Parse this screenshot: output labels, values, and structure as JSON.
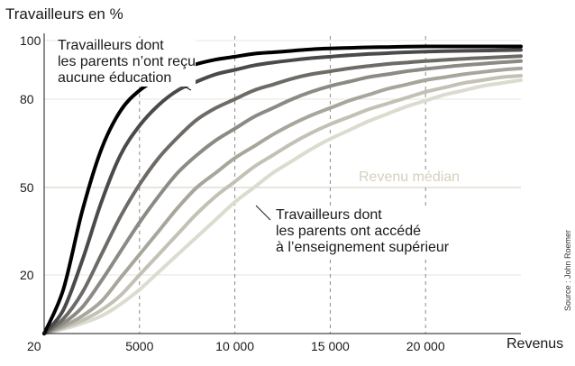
{
  "chart_data": {
    "type": "line",
    "ylabel": "Travailleurs en %",
    "xlabel": "Revenus",
    "xlim": [
      0,
      25000
    ],
    "ylim": [
      0,
      100
    ],
    "x_ticks": [
      5000,
      10000,
      15000,
      20000
    ],
    "x_tick_labels": [
      "5000",
      "10 000",
      "15 000",
      "20 000"
    ],
    "y_ticks": [
      20,
      50,
      80,
      100
    ],
    "y_tick_labels": [
      "20",
      "50",
      "80",
      "100"
    ],
    "x_origin_label": "20",
    "median": {
      "y": 50,
      "label": "Revenu médian"
    },
    "annotations": {
      "top": "Travailleurs dont\nles parents n’ont reçu\naucune éducation",
      "bottom": "Travailleurs dont\nles parents ont accédé\nà l’enseignement supérieur"
    },
    "source": "Source : John Roemer",
    "x": [
      0,
      1000,
      2000,
      3000,
      4000,
      5000,
      6000,
      7000,
      8000,
      9000,
      10000,
      11000,
      12000,
      13000,
      14000,
      15000,
      16000,
      17000,
      18000,
      19000,
      20000,
      21000,
      22000,
      23000,
      24000,
      25000
    ],
    "series": [
      {
        "color": "#000000",
        "values": [
          0,
          15,
          42,
          63,
          76,
          83,
          87,
          90,
          92,
          93.5,
          94.5,
          95.5,
          96,
          96.5,
          97,
          97.3,
          97.5,
          97.7,
          97.8,
          97.9,
          98,
          98,
          98,
          98,
          98,
          98
        ]
      },
      {
        "color": "#4a4a4a",
        "values": [
          0,
          8,
          25,
          45,
          61,
          71,
          78,
          83,
          86,
          88.5,
          90,
          91.5,
          92.5,
          93.3,
          94,
          94.5,
          95,
          95.4,
          95.7,
          96,
          96.2,
          96.4,
          96.5,
          96.6,
          96.7,
          96.8
        ]
      },
      {
        "color": "#6e6b67",
        "values": [
          0,
          5,
          14,
          27,
          40,
          51,
          60,
          67,
          73,
          77,
          80,
          83,
          85,
          87,
          88.5,
          89.5,
          90.5,
          91.3,
          92,
          92.5,
          93,
          93.4,
          93.8,
          94.1,
          94.4,
          94.7
        ]
      },
      {
        "color": "#8c8a84",
        "values": [
          0,
          3.5,
          9,
          18,
          28,
          38,
          47,
          55,
          61,
          66,
          70,
          74,
          77,
          80,
          82.5,
          84.5,
          86,
          87.5,
          88.5,
          89.5,
          90.3,
          91,
          91.6,
          92.1,
          92.6,
          93
        ]
      },
      {
        "color": "#a8a69c",
        "values": [
          0,
          2.5,
          6,
          11,
          19,
          27,
          35,
          43,
          50,
          55,
          60,
          64,
          68,
          71.5,
          74.5,
          77,
          79.5,
          81.5,
          83.5,
          85,
          86.5,
          87.5,
          88.5,
          89.3,
          90,
          90.5
        ]
      },
      {
        "color": "#c3c1b5",
        "values": [
          0,
          2,
          4.5,
          8,
          13,
          20,
          27,
          34,
          41,
          47,
          52,
          57,
          61,
          65,
          68.5,
          71.5,
          74,
          76.5,
          78.5,
          80.5,
          82.5,
          84,
          85.5,
          86.5,
          87.5,
          88
        ]
      },
      {
        "color": "#dcdbd0",
        "values": [
          0,
          1.5,
          3.5,
          6,
          10,
          15,
          21,
          27,
          33,
          39,
          45,
          50,
          55,
          59,
          63,
          66.5,
          69.5,
          72.5,
          75,
          77.5,
          79.5,
          81.5,
          83,
          84.5,
          85.5,
          86.5
        ]
      }
    ]
  }
}
